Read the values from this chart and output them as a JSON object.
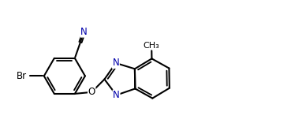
{
  "background_color": "#ffffff",
  "bond_color": "#000000",
  "atom_label_color": "#000000",
  "N_color": "#0000aa",
  "line_width": 1.5,
  "figsize": [
    3.69,
    1.56
  ],
  "dpi": 100,
  "xlim": [
    -2.8,
    7.8
  ],
  "ylim": [
    -2.2,
    2.8
  ]
}
